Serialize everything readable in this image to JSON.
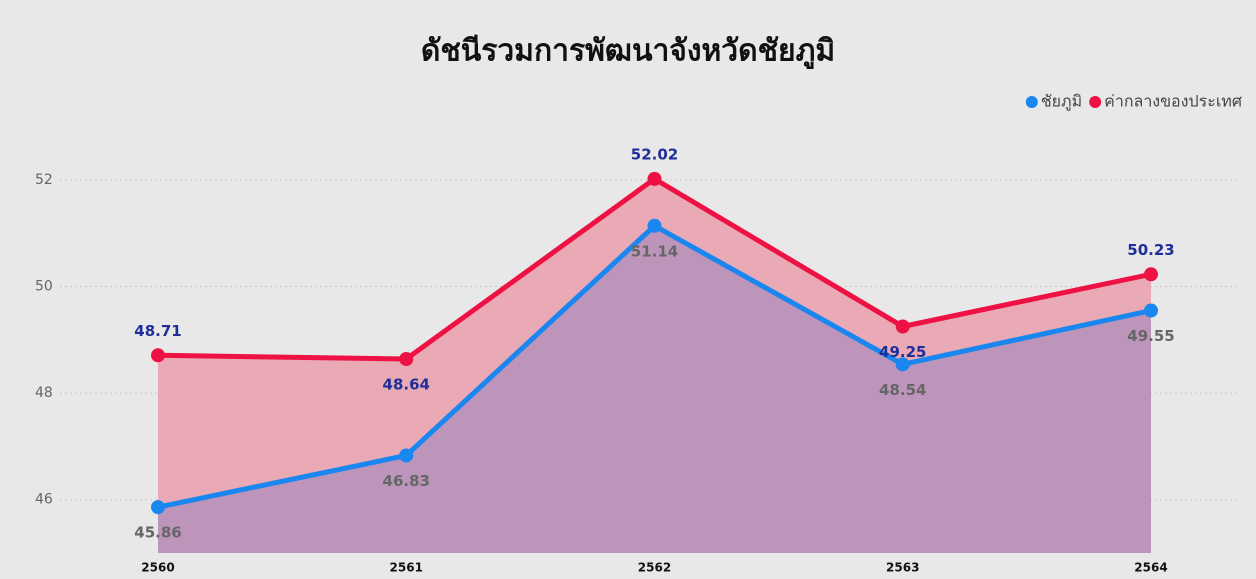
{
  "chart_data": {
    "type": "line",
    "title": "ดัชนีรวมการพัฒนาจังหวัดชัยภูมิ",
    "categories": [
      "2560",
      "2561",
      "2562",
      "2563",
      "2564"
    ],
    "series": [
      {
        "name": "ชัยภูมิ",
        "color": "#1a86f0",
        "area_color": "#bd94ba",
        "values": [
          45.86,
          46.83,
          51.14,
          48.54,
          49.55
        ]
      },
      {
        "name": "ค่ากลางของประเทศ",
        "color": "#ee1144",
        "area_color": "#e9a9b5",
        "values": [
          48.71,
          48.64,
          52.02,
          49.25,
          50.23
        ]
      }
    ],
    "ylim": [
      45,
      53.5
    ],
    "yticks": [
      46,
      48,
      50,
      52
    ],
    "grid": true,
    "legend": "top-right"
  }
}
